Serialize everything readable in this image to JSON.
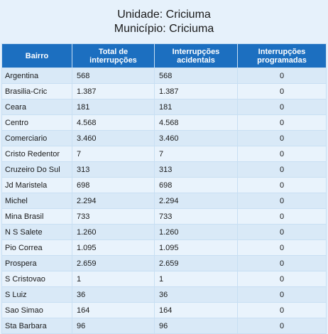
{
  "header": {
    "unidade": "Unidade: Criciuma",
    "municipio": "Município: Criciuma"
  },
  "table": {
    "columns": [
      "Bairro",
      "Total de interrupções",
      "Interrupções acidentais",
      "Interrupções programadas"
    ],
    "rows": [
      {
        "bairro": "Argentina",
        "total": "568",
        "acidentais": "568",
        "programadas": "0"
      },
      {
        "bairro": "Brasilia-Cric",
        "total": "1.387",
        "acidentais": "1.387",
        "programadas": "0"
      },
      {
        "bairro": "Ceara",
        "total": "181",
        "acidentais": "181",
        "programadas": "0"
      },
      {
        "bairro": "Centro",
        "total": "4.568",
        "acidentais": "4.568",
        "programadas": "0"
      },
      {
        "bairro": "Comerciario",
        "total": "3.460",
        "acidentais": "3.460",
        "programadas": "0"
      },
      {
        "bairro": "Cristo Redentor",
        "total": "7",
        "acidentais": "7",
        "programadas": "0"
      },
      {
        "bairro": "Cruzeiro Do Sul",
        "total": "313",
        "acidentais": "313",
        "programadas": "0"
      },
      {
        "bairro": "Jd Maristela",
        "total": "698",
        "acidentais": "698",
        "programadas": "0"
      },
      {
        "bairro": "Michel",
        "total": "2.294",
        "acidentais": "2.294",
        "programadas": "0"
      },
      {
        "bairro": "Mina Brasil",
        "total": "733",
        "acidentais": "733",
        "programadas": "0"
      },
      {
        "bairro": "N S Salete",
        "total": "1.260",
        "acidentais": "1.260",
        "programadas": "0"
      },
      {
        "bairro": "Pio Correa",
        "total": "1.095",
        "acidentais": "1.095",
        "programadas": "0"
      },
      {
        "bairro": "Prospera",
        "total": "2.659",
        "acidentais": "2.659",
        "programadas": "0"
      },
      {
        "bairro": "S Cristovao",
        "total": "1",
        "acidentais": "1",
        "programadas": "0"
      },
      {
        "bairro": "S Luiz",
        "total": "36",
        "acidentais": "36",
        "programadas": "0"
      },
      {
        "bairro": "Sao Simao",
        "total": "164",
        "acidentais": "164",
        "programadas": "0"
      },
      {
        "bairro": "Sta Barbara",
        "total": "96",
        "acidentais": "96",
        "programadas": "0"
      }
    ]
  },
  "colors": {
    "header_bg": "#1c6fc0",
    "page_bg": "#e6f1fb",
    "row_odd": "#d9e9f7",
    "row_even": "#e9f3fc"
  }
}
